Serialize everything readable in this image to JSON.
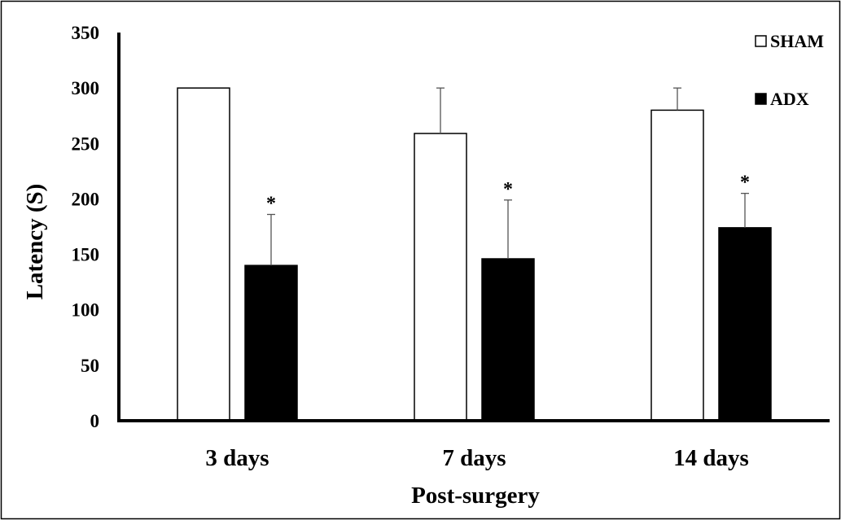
{
  "chart_data": {
    "type": "bar",
    "title": "",
    "xlabel": "Post-surgery",
    "ylabel": "Latency (S)",
    "ylim": [
      0,
      350
    ],
    "yticks": [
      "0",
      "50",
      "100",
      "150",
      "200",
      "250",
      "300",
      "350"
    ],
    "categories": [
      "3 days",
      "7 days",
      "14 days"
    ],
    "series": [
      {
        "name": "SHAM",
        "values": [
          300,
          259,
          280
        ],
        "errors": [
          0,
          41,
          20
        ],
        "fill": "#ffffff"
      },
      {
        "name": "ADX",
        "values": [
          140,
          146,
          174
        ],
        "errors": [
          46,
          53,
          31
        ],
        "fill": "#000000"
      }
    ],
    "annotations": [
      {
        "series": 1,
        "category": 0,
        "text": "*"
      },
      {
        "series": 1,
        "category": 1,
        "text": "*"
      },
      {
        "series": 1,
        "category": 2,
        "text": "*"
      }
    ],
    "legend": "top-right",
    "grid": false
  }
}
